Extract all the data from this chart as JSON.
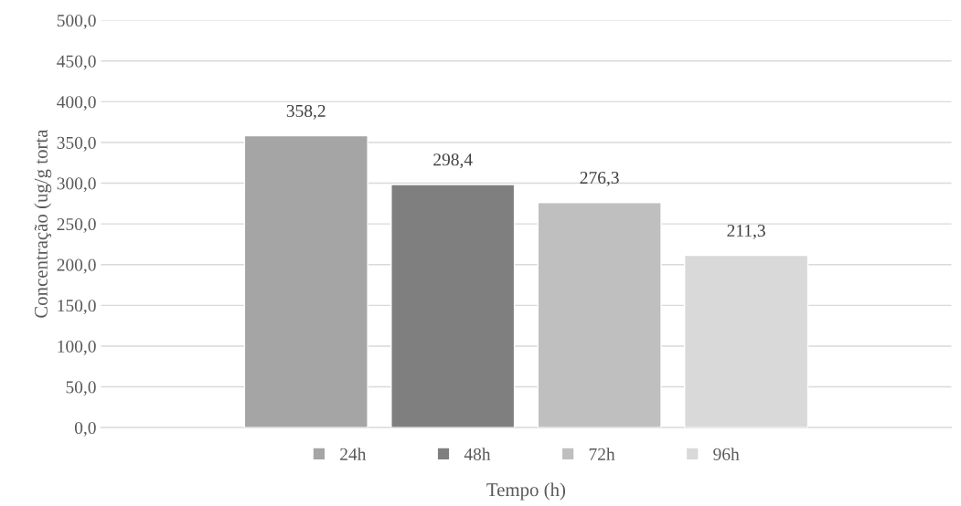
{
  "chart_data": {
    "type": "bar",
    "xlabel": "Tempo (h)",
    "ylabel": "Concentração (ug/g torta",
    "categories": [
      null
    ],
    "series": [
      {
        "name": "24h",
        "color": "#a5a5a5",
        "values": [
          358.2
        ],
        "value_labels": [
          "358,2"
        ]
      },
      {
        "name": "48h",
        "color": "#7f7f7f",
        "values": [
          298.4
        ],
        "value_labels": [
          "298,4"
        ]
      },
      {
        "name": "72h",
        "color": "#bfbfbf",
        "values": [
          276.3
        ],
        "value_labels": [
          "276,3"
        ]
      },
      {
        "name": "96h",
        "color": "#d9d9d9",
        "values": [
          211.3
        ],
        "value_labels": [
          "211,3"
        ]
      }
    ],
    "ylim": [
      0,
      500
    ],
    "yticks": [
      {
        "value": 0,
        "label": "0,0"
      },
      {
        "value": 50,
        "label": "50,0"
      },
      {
        "value": 100,
        "label": "100,0"
      },
      {
        "value": 150,
        "label": "150,0"
      },
      {
        "value": 200,
        "label": "200,0"
      },
      {
        "value": 250,
        "label": "250,0"
      },
      {
        "value": 300,
        "label": "300,0"
      },
      {
        "value": 350,
        "label": "350,0"
      },
      {
        "value": 400,
        "label": "400,0"
      },
      {
        "value": 450,
        "label": "450,0"
      },
      {
        "value": 500,
        "label": "500,0"
      }
    ],
    "grid": "y",
    "legend": "bottom"
  }
}
